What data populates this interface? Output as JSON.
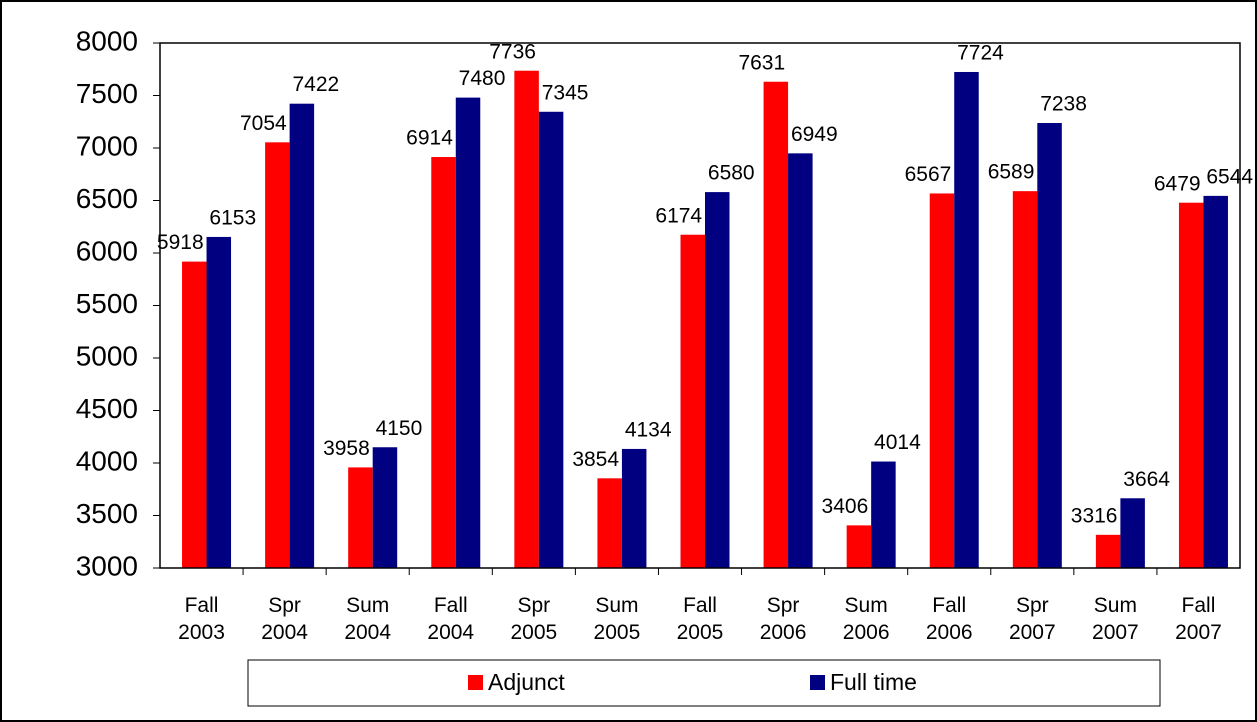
{
  "chart_data": {
    "type": "bar",
    "categories": [
      "Fall 2003",
      "Spr 2004",
      "Sum 2004",
      "Fall 2004",
      "Spr 2005",
      "Sum 2005",
      "Fall 2005",
      "Spr 2006",
      "Sum 2006",
      "Fall 2006",
      "Spr 2007",
      "Sum 2007",
      "Fall 2007"
    ],
    "series": [
      {
        "name": "Adjunct",
        "color": "#ff0000",
        "values": [
          5918,
          7054,
          3958,
          6914,
          7736,
          3854,
          6174,
          7631,
          3406,
          6567,
          6589,
          3316,
          6479
        ]
      },
      {
        "name": "Full time",
        "color": "#000080",
        "values": [
          6153,
          7422,
          4150,
          7480,
          7345,
          4134,
          6580,
          6949,
          4014,
          7724,
          7238,
          3664,
          6544
        ]
      }
    ],
    "ylim": [
      3000,
      8000
    ],
    "yticks": [
      3000,
      3500,
      4000,
      4500,
      5000,
      5500,
      6000,
      6500,
      7000,
      7500,
      8000
    ],
    "grid": false,
    "legend": "bottom"
  }
}
